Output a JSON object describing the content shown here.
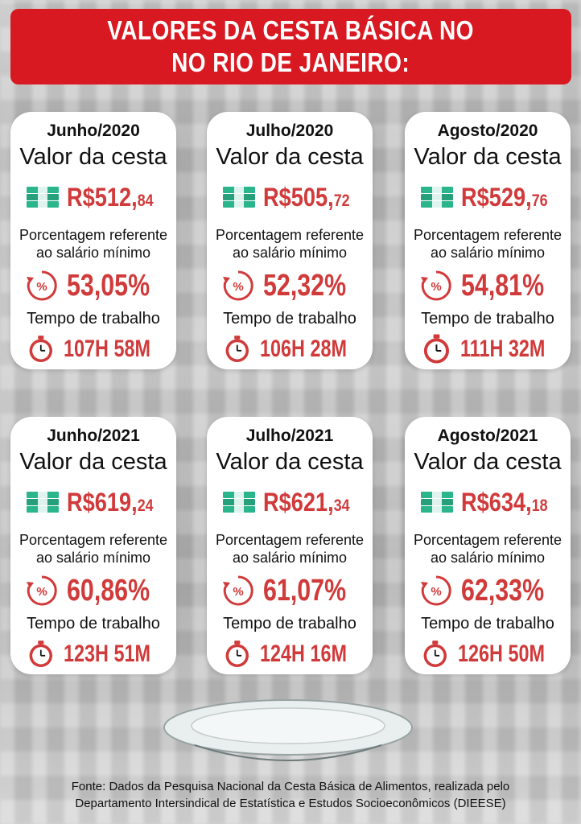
{
  "title": {
    "line1": "VALORES DA CESTA BÁSICA NO",
    "line2": "NO RIO DE JANEIRO:"
  },
  "labels": {
    "valor": "Valor da cesta",
    "pct_line1": "Porcentagem referente",
    "pct_line2": "ao salário mínimo",
    "tempo": "Tempo de trabalho"
  },
  "cards": [
    {
      "month": "Junho/2020",
      "price_main": "R$512,",
      "price_cents": "84",
      "pct": "53,05%",
      "time": "107H 58M"
    },
    {
      "month": "Julho/2020",
      "price_main": "R$505,",
      "price_cents": "72",
      "pct": "52,32%",
      "time": "106H 28M"
    },
    {
      "month": "Agosto/2020",
      "price_main": "R$529,",
      "price_cents": "76",
      "pct": "54,81%",
      "time": "111H 32M"
    },
    {
      "month": "Junho/2021",
      "price_main": "R$619,",
      "price_cents": "24",
      "pct": "60,86%",
      "time": "123H 51M"
    },
    {
      "month": "Julho/2021",
      "price_main": "R$621,",
      "price_cents": "34",
      "pct": "61,07%",
      "time": "124H 16M"
    },
    {
      "month": "Agosto/2021",
      "price_main": "R$634,",
      "price_cents": "18",
      "pct": "62,33%",
      "time": "126H 50M"
    }
  ],
  "icons": {
    "money": "money-stack-icon",
    "percent": "percent-cycle-icon",
    "clock": "stopwatch-icon"
  },
  "colors": {
    "title_bg": "#d81921",
    "value_red": "#d13a3a",
    "money_green": "#2bb58c"
  },
  "footer": {
    "line1": "Fonte: Dados da Pesquisa Nacional da Cesta Básica de Alimentos, realizada pelo",
    "line2": "Departamento Intersindical de Estatística e Estudos Socioeconômicos (DIEESE)"
  }
}
